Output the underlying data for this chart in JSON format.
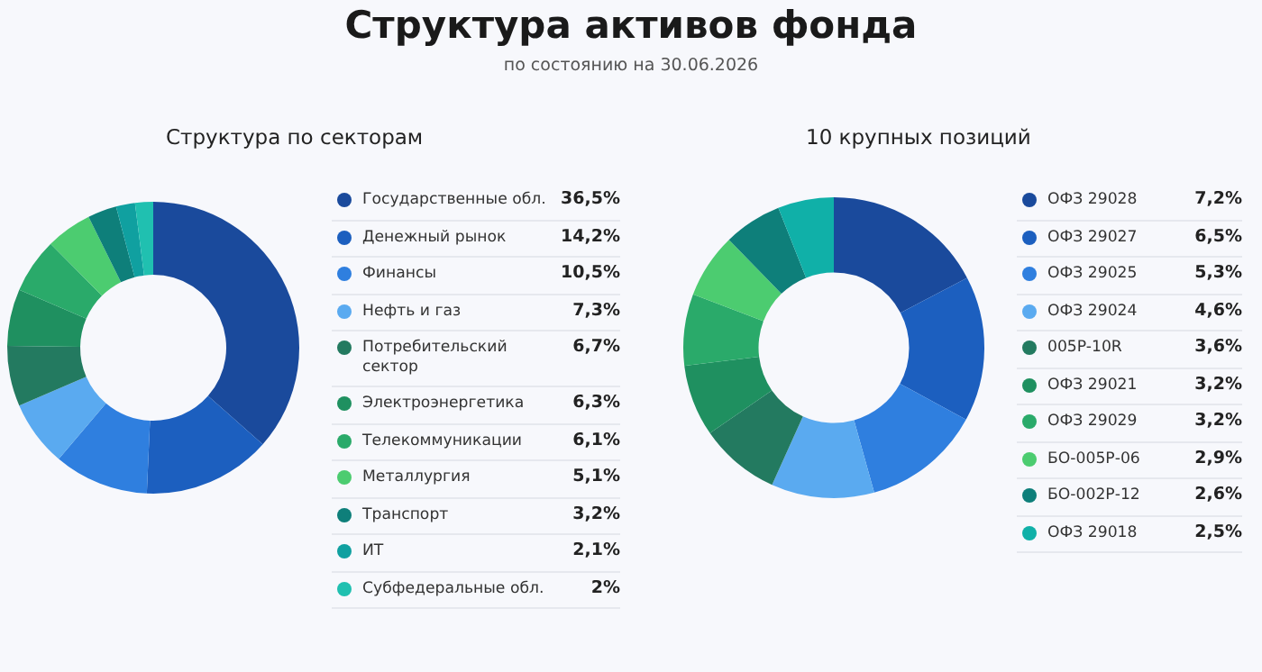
{
  "chart_data": [
    {
      "type": "other",
      "title": "Структура активов фонда",
      "subtitle": "по состоянию на 30.06.2026"
    },
    {
      "type": "donut",
      "title": "Структура по секторам",
      "legend": "right",
      "categories": [
        "Государственные обл.",
        "Денежный рынок",
        "Финансы",
        "Нефть и газ",
        "Потребительский сектор",
        "Электроэнергетика",
        "Телекоммуникации",
        "Металлургия",
        "Транспорт",
        "ИТ",
        "Субфедеральные обл."
      ],
      "values": [
        36.5,
        14.2,
        10.5,
        7.3,
        6.7,
        6.3,
        6.1,
        5.1,
        3.2,
        2.1,
        2
      ],
      "value_labels": [
        "36,5%",
        "14,2%",
        "10,5%",
        "7,3%",
        "6,7%",
        "6,3%",
        "6,1%",
        "5,1%",
        "3,2%",
        "2,1%",
        "2%"
      ],
      "colors": [
        "#1a4a9c",
        "#1c5fbf",
        "#2f7fdf",
        "#5aaaf0",
        "#237a60",
        "#1f9060",
        "#2aaa6a",
        "#4ccc70",
        "#0e7f7a",
        "#10a0a0",
        "#20c0b0"
      ]
    },
    {
      "type": "donut",
      "title": "10 крупных позиций",
      "legend": "right",
      "categories": [
        "ОФЗ 29028",
        "ОФЗ 29027",
        "ОФЗ 29025",
        "ОФЗ 29024",
        "005P-10R",
        "ОФЗ 29021",
        "ОФЗ 29029",
        "БО-005Р-06",
        "БО-002Р-12",
        "ОФЗ 29018"
      ],
      "values": [
        7.2,
        6.5,
        5.3,
        4.6,
        3.6,
        3.2,
        3.2,
        2.9,
        2.6,
        2.5
      ],
      "value_labels": [
        "7,2%",
        "6,5%",
        "5,3%",
        "4,6%",
        "3,6%",
        "3,2%",
        "3,2%",
        "2,9%",
        "2,6%",
        "2,5%"
      ],
      "colors": [
        "#1a4a9c",
        "#1c5fbf",
        "#2f7fdf",
        "#5aaaf0",
        "#237a60",
        "#1f9060",
        "#2aaa6a",
        "#4ccc70",
        "#0e7f7a",
        "#10b0a8"
      ]
    }
  ]
}
